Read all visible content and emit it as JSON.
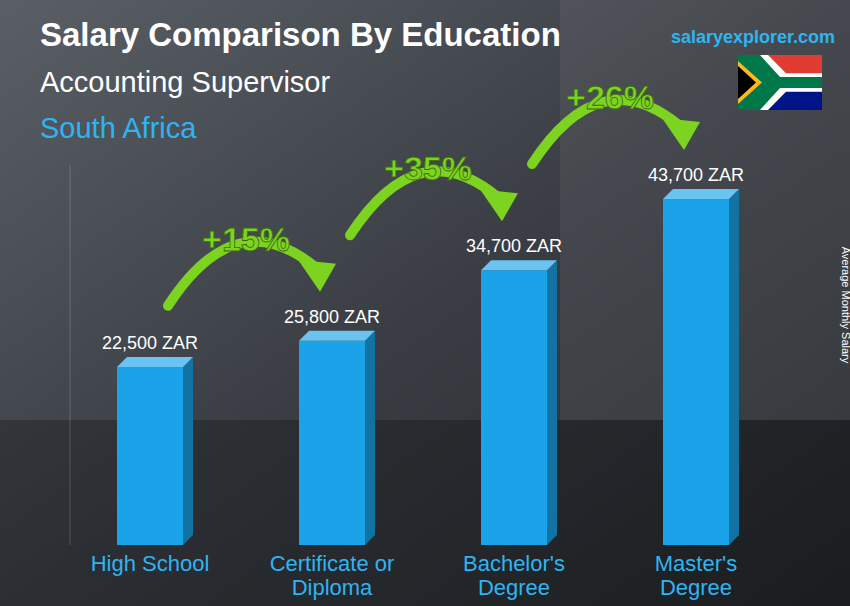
{
  "chart_data": {
    "type": "bar",
    "title": "Salary Comparison By Education",
    "subtitle": "Accounting Supervisor",
    "location": "South Africa",
    "source": "salaryexplorer.com",
    "y_label": "Average Monthly Salary",
    "categories": [
      "High School",
      "Certificate or Diploma",
      "Bachelor's Degree",
      "Master's Degree"
    ],
    "values": [
      22500,
      25800,
      34700,
      43700
    ],
    "value_labels": [
      "22,500 ZAR",
      "25,800 ZAR",
      "34,700 ZAR",
      "43,700 ZAR"
    ],
    "data_labels": true,
    "color": "#1aa3e8",
    "ylim": [
      0,
      48000
    ],
    "tick_labels": false,
    "grid": false,
    "annotations": [
      {
        "value": 15,
        "label": "+15%"
      },
      {
        "value": 35,
        "label": "+35%"
      },
      {
        "value": 26,
        "label": "+26%"
      }
    ]
  }
}
